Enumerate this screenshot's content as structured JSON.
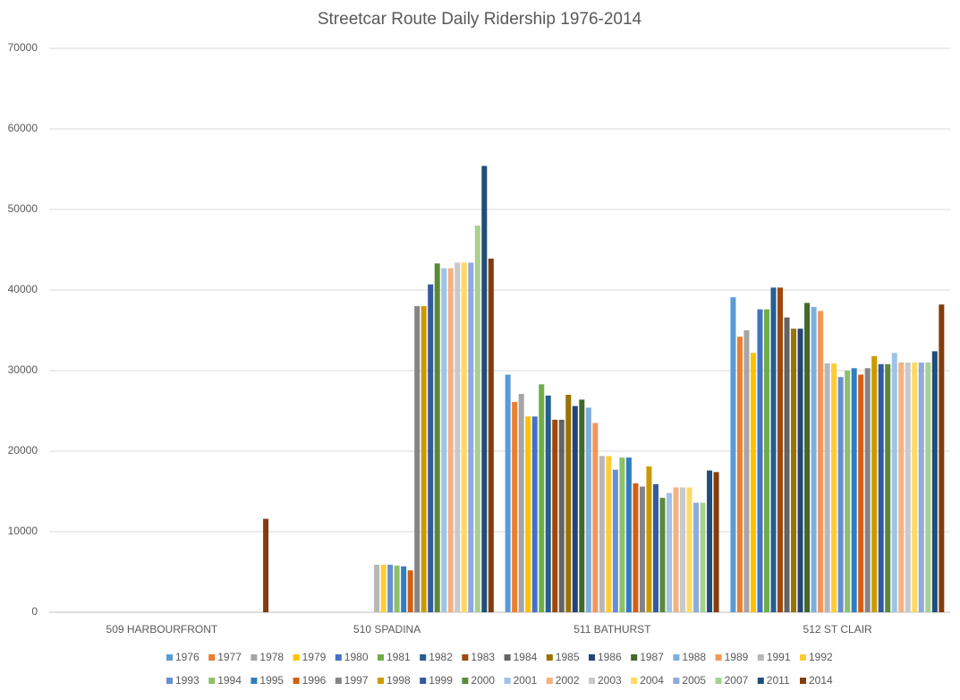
{
  "chart_data": {
    "type": "bar",
    "title": "Streetcar Route Daily Ridership 1976-2014",
    "categories": [
      "509 HARBOURFRONT",
      "510 SPADINA",
      "511 BATHURST",
      "512 ST CLAIR"
    ],
    "ylim": [
      0,
      70000
    ],
    "yticks": [
      0,
      10000,
      20000,
      30000,
      40000,
      50000,
      60000,
      70000
    ],
    "grid": true,
    "series": [
      {
        "name": "1976",
        "color": "#5b9bd5",
        "values": [
          null,
          null,
          29500,
          39100
        ]
      },
      {
        "name": "1977",
        "color": "#ed7d31",
        "values": [
          null,
          null,
          26100,
          34200
        ]
      },
      {
        "name": "1978",
        "color": "#a5a5a5",
        "values": [
          null,
          null,
          27100,
          35000
        ]
      },
      {
        "name": "1979",
        "color": "#ffc000",
        "values": [
          null,
          null,
          24300,
          32200
        ]
      },
      {
        "name": "1980",
        "color": "#4472c4",
        "values": [
          null,
          null,
          24300,
          37600
        ]
      },
      {
        "name": "1981",
        "color": "#70ad47",
        "values": [
          null,
          null,
          28300,
          37600
        ]
      },
      {
        "name": "1982",
        "color": "#255e91",
        "values": [
          null,
          null,
          26900,
          40300
        ]
      },
      {
        "name": "1983",
        "color": "#9e480e",
        "values": [
          null,
          null,
          23900,
          40300
        ]
      },
      {
        "name": "1984",
        "color": "#636363",
        "values": [
          null,
          null,
          23900,
          36600
        ]
      },
      {
        "name": "1985",
        "color": "#997300",
        "values": [
          null,
          null,
          27000,
          35200
        ]
      },
      {
        "name": "1986",
        "color": "#264478",
        "values": [
          null,
          null,
          25600,
          35200
        ]
      },
      {
        "name": "1987",
        "color": "#43682b",
        "values": [
          null,
          null,
          26400,
          38400
        ]
      },
      {
        "name": "1988",
        "color": "#7cafdd",
        "values": [
          null,
          null,
          25400,
          37900
        ]
      },
      {
        "name": "1989",
        "color": "#f1975a",
        "values": [
          null,
          null,
          23500,
          37400
        ]
      },
      {
        "name": "1991",
        "color": "#b7b7b7",
        "values": [
          null,
          5900,
          19400,
          30900
        ]
      },
      {
        "name": "1992",
        "color": "#ffcd33",
        "values": [
          null,
          5900,
          19400,
          30900
        ]
      },
      {
        "name": "1993",
        "color": "#698ed0",
        "values": [
          null,
          5900,
          17700,
          29200
        ]
      },
      {
        "name": "1994",
        "color": "#8cc168",
        "values": [
          null,
          5800,
          19200,
          30000
        ]
      },
      {
        "name": "1995",
        "color": "#327dc2",
        "values": [
          null,
          5700,
          19200,
          30300
        ]
      },
      {
        "name": "1996",
        "color": "#d26012",
        "values": [
          null,
          5200,
          16000,
          29500
        ]
      },
      {
        "name": "1997",
        "color": "#848484",
        "values": [
          null,
          38000,
          15600,
          30300
        ]
      },
      {
        "name": "1998",
        "color": "#cc9a00",
        "values": [
          null,
          38000,
          18100,
          31800
        ]
      },
      {
        "name": "1999",
        "color": "#335aa1",
        "values": [
          null,
          40700,
          15900,
          30800
        ]
      },
      {
        "name": "2000",
        "color": "#5a8a39",
        "values": [
          null,
          43300,
          14200,
          30800
        ]
      },
      {
        "name": "2001",
        "color": "#9dc3e6",
        "values": [
          null,
          42700,
          14800,
          32200
        ]
      },
      {
        "name": "2002",
        "color": "#f4b183",
        "values": [
          null,
          42700,
          15500,
          31000
        ]
      },
      {
        "name": "2003",
        "color": "#c9c9c9",
        "values": [
          null,
          43400,
          15500,
          31000
        ]
      },
      {
        "name": "2004",
        "color": "#ffd966",
        "values": [
          null,
          43400,
          15500,
          31000
        ]
      },
      {
        "name": "2005",
        "color": "#8faadc",
        "values": [
          null,
          43400,
          13600,
          31000
        ]
      },
      {
        "name": "2007",
        "color": "#a9d18e",
        "values": [
          null,
          48000,
          13600,
          31000
        ]
      },
      {
        "name": "2011",
        "color": "#1f4e79",
        "values": [
          null,
          55400,
          17600,
          32400
        ]
      },
      {
        "name": "2014",
        "color": "#843c0c",
        "values": [
          11600,
          43900,
          17400,
          38200
        ]
      }
    ]
  }
}
